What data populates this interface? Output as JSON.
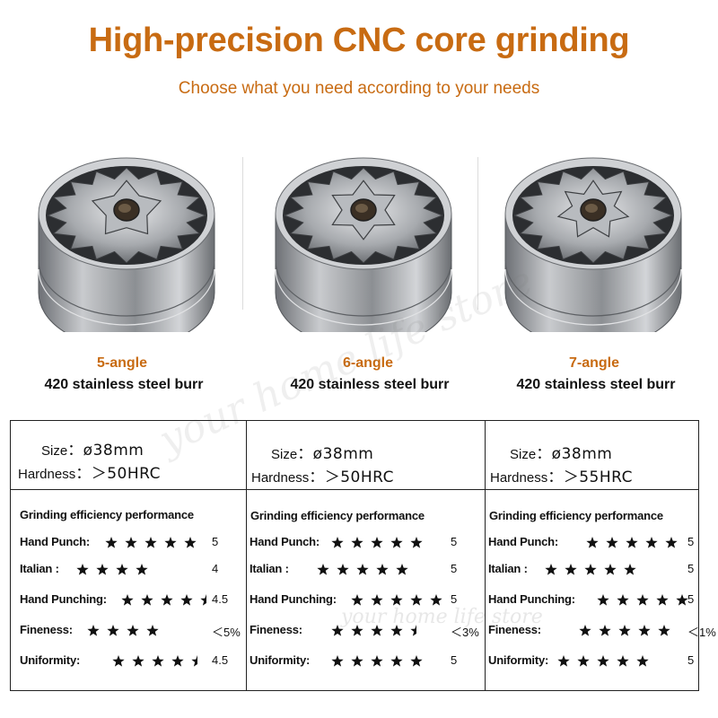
{
  "header": {
    "title": "High-precision CNC core grinding",
    "subtitle": "Choose what you need according to your needs"
  },
  "watermark": {
    "text": "your home life store",
    "text2": "your home life store"
  },
  "colors": {
    "accent": "#c86b12",
    "text": "#111111",
    "star": "#111111",
    "metal": "#9a9da1"
  },
  "burrs": [
    {
      "angle": "5-angle",
      "material": "420 stainless steel burr",
      "points": 5,
      "icon": "burr-5-angle-icon"
    },
    {
      "angle": "6-angle",
      "material": "420 stainless steel burr",
      "points": 6,
      "icon": "burr-6-angle-icon"
    },
    {
      "angle": "7-angle",
      "material": "420 stainless steel burr",
      "points": 7,
      "icon": "burr-7-angle-icon"
    }
  ],
  "specs": [
    {
      "size_label": "Size",
      "size_value": "：ø38mm",
      "hardness_label": "Hardness",
      "hardness_value": "：＞50HRC",
      "perf_title": "Grinding efficiency performance",
      "rows": [
        {
          "label": "Hand Punch:",
          "rating": 5,
          "value": "5"
        },
        {
          "label": "Italian :",
          "rating": 4,
          "value": "4"
        },
        {
          "label": "Hand Punching:",
          "rating": 4.5,
          "value": "4.5"
        },
        {
          "label": "Fineness:",
          "rating": 4,
          "value": "＜5%"
        },
        {
          "label": "Uniformity:",
          "rating": 4.5,
          "value": "4.5"
        }
      ]
    },
    {
      "size_label": "Size",
      "size_value": "：ø38mm",
      "hardness_label": "Hardness",
      "hardness_value": "：＞50HRC",
      "perf_title": "Grinding efficiency performance",
      "rows": [
        {
          "label": "Hand Punch:",
          "rating": 5,
          "value": "5"
        },
        {
          "label": "Italian :",
          "rating": 5,
          "value": "5"
        },
        {
          "label": "Hand Punching:",
          "rating": 5,
          "value": "5"
        },
        {
          "label": "Fineness:",
          "rating": 4.5,
          "value": "＜3%"
        },
        {
          "label": "Uniformity:",
          "rating": 5,
          "value": "5"
        }
      ]
    },
    {
      "size_label": "Size",
      "size_value": "：ø38mm",
      "hardness_label": "Hardness",
      "hardness_value": "：＞55HRC",
      "perf_title": "Grinding efficiency performance",
      "rows": [
        {
          "label": "Hand Punch:",
          "rating": 5,
          "value": "5"
        },
        {
          "label": "Italian :",
          "rating": 5,
          "value": "5"
        },
        {
          "label": "Hand Punching:",
          "rating": 5,
          "value": "5"
        },
        {
          "label": "Fineness:",
          "rating": 5,
          "value": "＜1%"
        },
        {
          "label": "Uniformity:",
          "rating": 5,
          "value": "5"
        }
      ]
    }
  ]
}
